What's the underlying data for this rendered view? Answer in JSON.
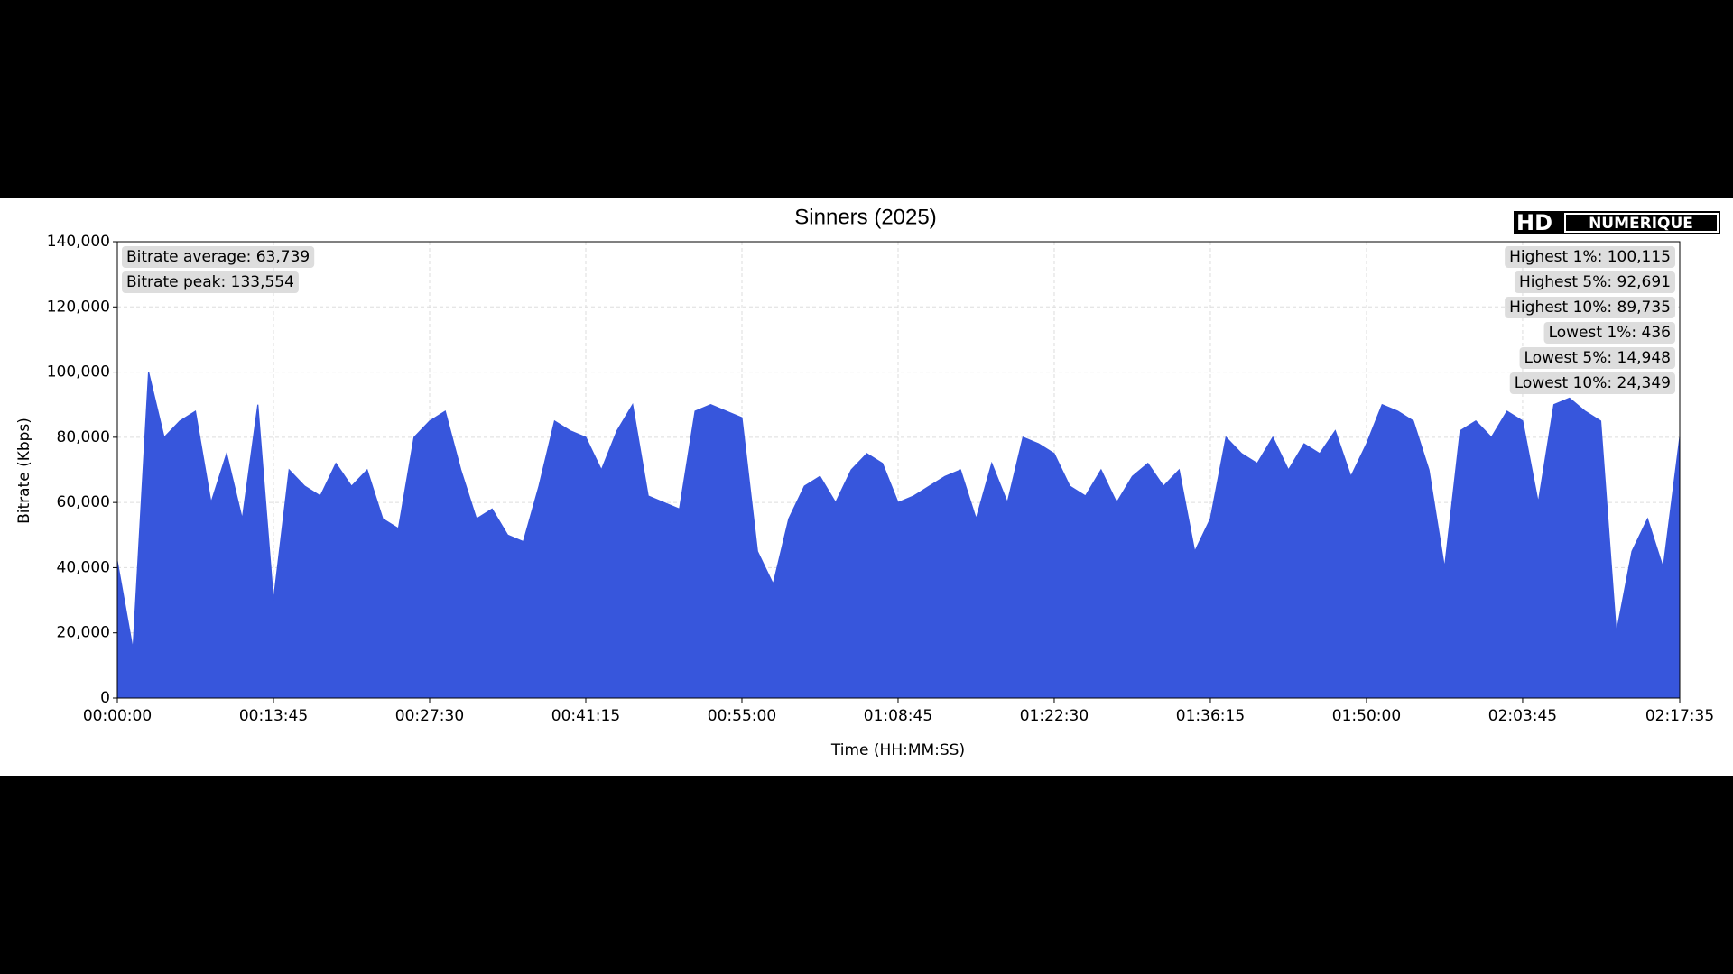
{
  "chart_data": {
    "type": "area",
    "title": "Sinners (2025)",
    "xlabel": "Time (HH:MM:SS)",
    "ylabel": "Bitrate (Kbps)",
    "color": "#3756dc",
    "grid": true,
    "xlim": [
      0,
      8255
    ],
    "xticks": [
      {
        "value": 0,
        "label": "00:00:00"
      },
      {
        "value": 825,
        "label": "00:13:45"
      },
      {
        "value": 1650,
        "label": "00:27:30"
      },
      {
        "value": 2475,
        "label": "00:41:15"
      },
      {
        "value": 3300,
        "label": "00:55:00"
      },
      {
        "value": 4125,
        "label": "01:08:45"
      },
      {
        "value": 4950,
        "label": "01:22:30"
      },
      {
        "value": 5775,
        "label": "01:36:15"
      },
      {
        "value": 6600,
        "label": "01:50:00"
      },
      {
        "value": 7425,
        "label": "02:03:45"
      },
      {
        "value": 8255,
        "label": "02:17:35"
      }
    ],
    "ylim": [
      0,
      140000
    ],
    "yticks": [
      0,
      {
        "value": 20000,
        "label": "20,000"
      },
      {
        "value": 40000,
        "label": "40,000"
      },
      {
        "value": 60000,
        "label": "60,000"
      },
      {
        "value": 80000,
        "label": "80,000"
      },
      {
        "value": 100000,
        "label": "100,000"
      },
      {
        "value": 120000,
        "label": "120,000"
      },
      {
        "value": 140000,
        "label": "140,000"
      }
    ],
    "x": [
      0,
      82.5,
      165,
      247.5,
      330,
      412.5,
      495,
      577.5,
      660,
      742.5,
      825,
      907.5,
      990,
      1072.5,
      1155,
      1237.5,
      1320,
      1402.5,
      1485,
      1567.5,
      1650,
      1732.5,
      1815,
      1897.5,
      1980,
      2062.5,
      2145,
      2227.5,
      2310,
      2392.5,
      2475,
      2557.5,
      2640,
      2722.5,
      2805,
      2887.5,
      2970,
      3052.5,
      3135,
      3217.5,
      3300,
      3382.5,
      3465,
      3547.5,
      3630,
      3712.5,
      3795,
      3877.5,
      3960,
      4042.5,
      4125,
      4207.5,
      4290,
      4372.5,
      4455,
      4537.5,
      4620,
      4702.5,
      4785,
      4867.5,
      4950,
      5032.5,
      5115,
      5197.5,
      5280,
      5362.5,
      5445,
      5527.5,
      5610,
      5692.5,
      5775,
      5857.5,
      5940,
      6022.5,
      6105,
      6187.5,
      6270,
      6352.5,
      6435,
      6517.5,
      6600,
      6682.5,
      6765,
      6847.5,
      6930,
      7012.5,
      7095,
      7177.5,
      7260,
      7342.5,
      7425,
      7507.5,
      7590,
      7672.5,
      7755,
      7837.5,
      7920,
      8002.5,
      8085,
      8167.5,
      8255
    ],
    "values": [
      42000,
      15000,
      100000,
      80000,
      85000,
      88000,
      60000,
      75000,
      55000,
      90000,
      30000,
      70000,
      65000,
      62000,
      72000,
      65000,
      70000,
      55000,
      52000,
      80000,
      85000,
      88000,
      70000,
      55000,
      58000,
      50000,
      48000,
      65000,
      85000,
      82000,
      80000,
      70000,
      82000,
      90000,
      62000,
      60000,
      58000,
      88000,
      90000,
      88000,
      86000,
      45000,
      35000,
      55000,
      65000,
      68000,
      60000,
      70000,
      75000,
      72000,
      60000,
      62000,
      65000,
      68000,
      70000,
      55000,
      72000,
      60000,
      80000,
      78000,
      75000,
      65000,
      62000,
      70000,
      60000,
      68000,
      72000,
      65000,
      70000,
      45000,
      55000,
      80000,
      75000,
      72000,
      80000,
      70000,
      78000,
      75000,
      82000,
      68000,
      78000,
      90000,
      88000,
      85000,
      70000,
      40000,
      82000,
      85000,
      80000,
      88000,
      85000,
      60000,
      90000,
      92000,
      88000,
      85000,
      20000,
      45000,
      55000,
      40000,
      80000
    ],
    "annotations_left": [
      "Bitrate average: 63,739",
      "Bitrate peak: 133,554"
    ],
    "annotations_right": [
      "Highest 1%: 100,115",
      "Highest 5%: 92,691",
      "Highest 10%: 89,735",
      "Lowest 1%: 436",
      "Lowest 5%: 14,948",
      "Lowest 10%: 24,349"
    ]
  },
  "logo": {
    "left": "HD",
    "right": "NUMERIQUE"
  }
}
